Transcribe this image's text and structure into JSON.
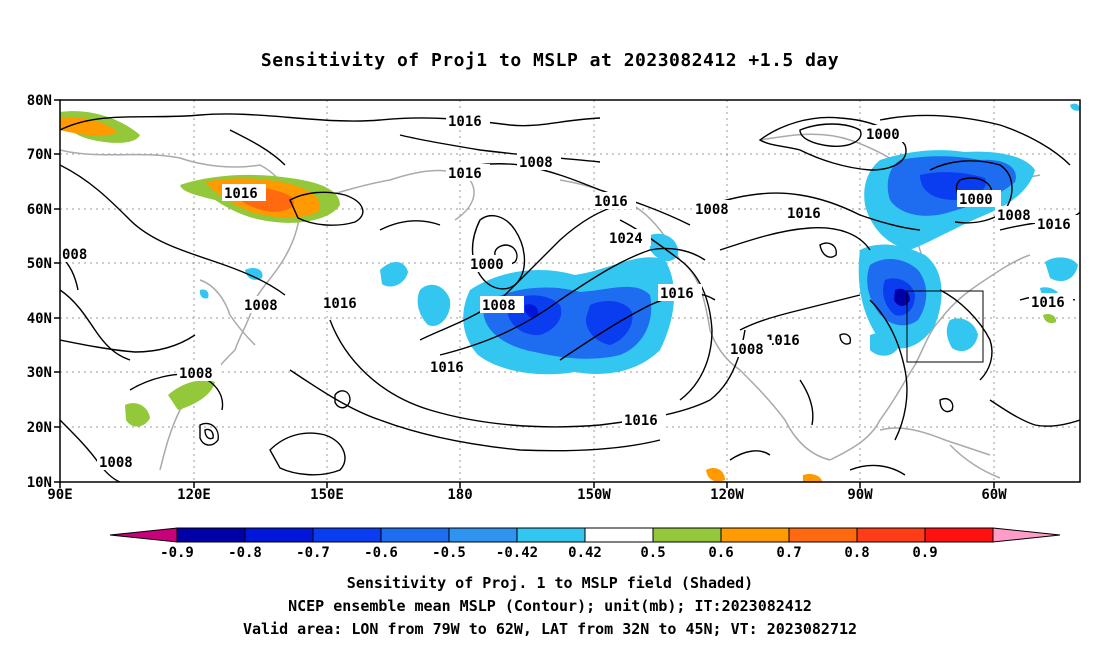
{
  "title": "Sensitivity of Proj1 to MSLP at 2023082412 +1.5 day",
  "lat_ticks": [
    "80N",
    "70N",
    "60N",
    "50N",
    "40N",
    "30N",
    "20N",
    "10N"
  ],
  "lon_ticks": [
    "90E",
    "120E",
    "150E",
    "180",
    "150W",
    "120W",
    "90W",
    "60W"
  ],
  "colorbar": {
    "labels": [
      "-0.9",
      "-0.8",
      "-0.7",
      "-0.6",
      "-0.5",
      "-0.42",
      "0.42",
      "0.5",
      "0.6",
      "0.7",
      "0.8",
      "0.9"
    ],
    "colors": [
      "#c8007a",
      "#0000a8",
      "#0016d8",
      "#0a3cf0",
      "#1e6cf0",
      "#2e94f0",
      "#33c6f0",
      "#ffffff",
      "#92c83a",
      "#ff9a00",
      "#ff6a10",
      "#ff3c18",
      "#ff1010",
      "#ff9cc8"
    ]
  },
  "contour_labels": {
    "c1016_a": "1016",
    "c1016_b": "1016",
    "c1016_c": "1016",
    "c1016_d": "1016",
    "c1016_e": "1016",
    "c1016_f": "1016",
    "c1016_g": "1016",
    "c1016_h": "1016",
    "c1016_i": "1016",
    "c1016_j": "1016",
    "c1016_k": "1016",
    "c1008_a": "1008",
    "c1008_b": "1008",
    "c1008_c": "1008",
    "c1008_d": "1008",
    "c1008_e": "1008",
    "c1008_f": "1008",
    "c1008_g": "1008",
    "c1008_h": "1008",
    "c1008_i": "008",
    "c1000_a": "1000",
    "c1000_b": "1000",
    "c1000_c": "1000",
    "c1024_a": "1024"
  },
  "captions": {
    "line1": "Sensitivity of Proj. 1 to MSLP field (Shaded)",
    "line2": "NCEP ensemble mean MSLP (Contour); unit(mb); IT:2023082412",
    "line3": "Valid area: LON from 79W to 62W, LAT from 32N to 45N; VT: 2023082712"
  }
}
